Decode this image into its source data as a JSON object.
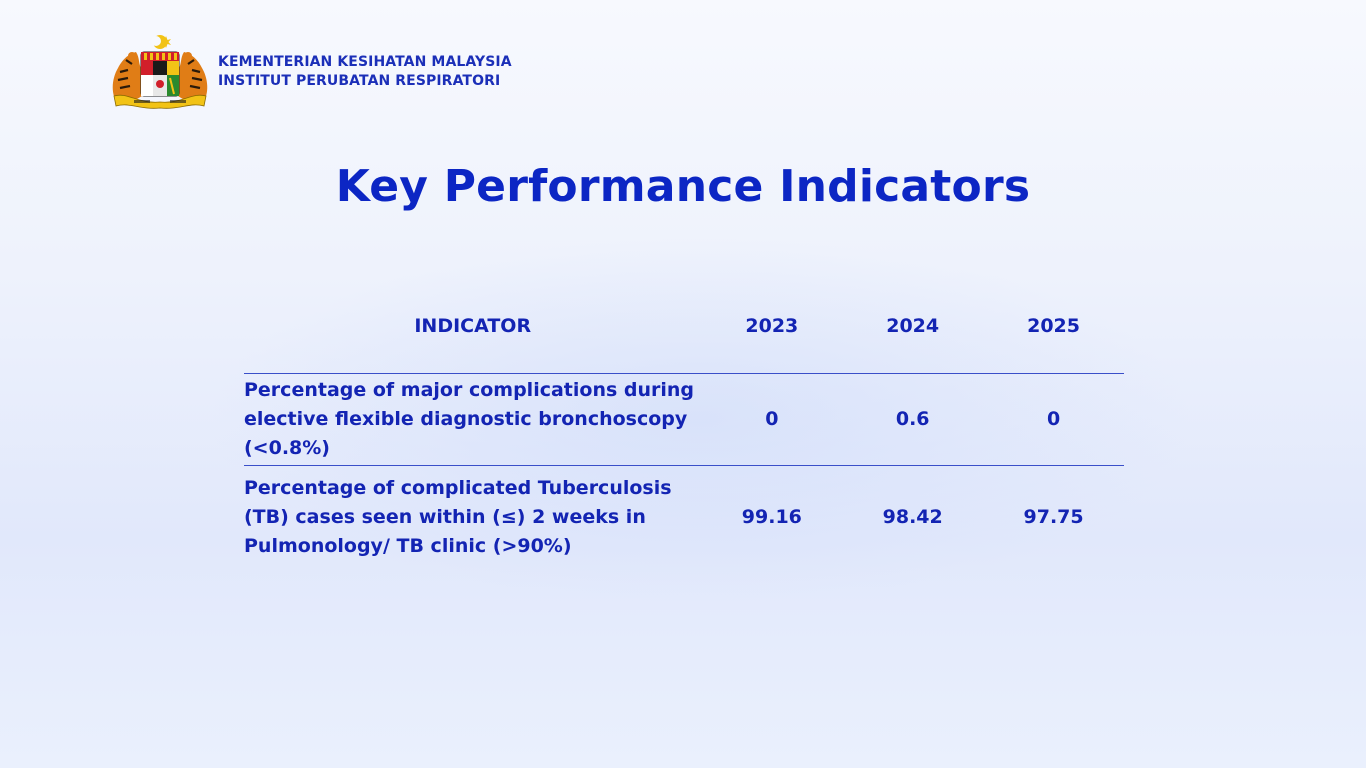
{
  "header": {
    "ministry": "KEMENTERIAN KESIHATAN MALAYSIA",
    "institute": "INSTITUT PERUBATAN RESPIRATORI"
  },
  "title": "Key Performance Indicators",
  "table": {
    "columns": [
      "INDICATOR",
      "2023",
      "2024",
      "2025"
    ],
    "rows": [
      {
        "indicator": "Percentage of major complications during elective flexible diagnostic bronchoscopy (<0.8%)",
        "y2023": "0",
        "y2024": "0.6",
        "y2025": "0"
      },
      {
        "indicator": "Percentage of complicated Tuberculosis (TB) cases seen within (≤) 2 weeks in Pulmonology/ TB clinic (>90%)",
        "y2023": "99.16",
        "y2024": "98.42",
        "y2025": "97.75"
      }
    ]
  },
  "colors": {
    "title": "#0c26c4",
    "text": "#1324b3",
    "rule": "#3a4fc9"
  },
  "icons": {
    "crest": "malaysia-coat-of-arms-icon"
  }
}
